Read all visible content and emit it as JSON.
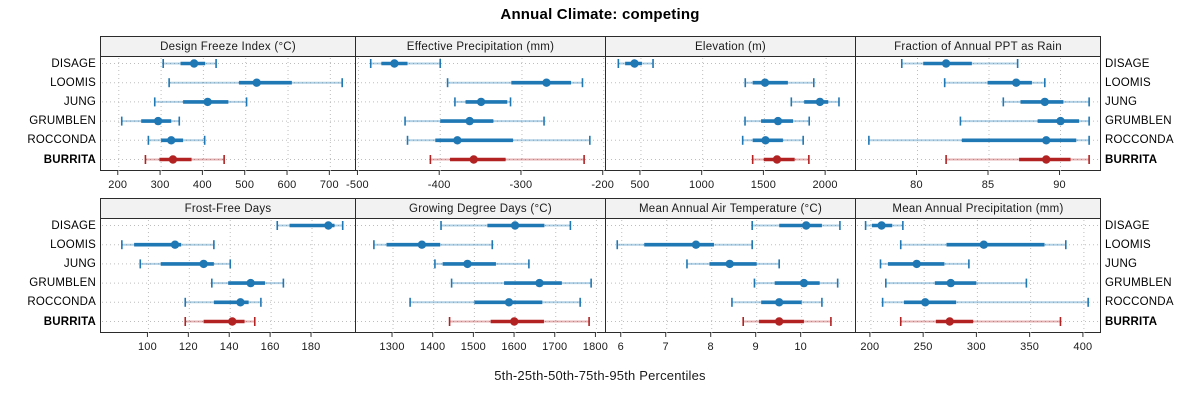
{
  "title": "Annual Climate: competing",
  "footer": "5th-25th-50th-75th-95th Percentiles",
  "sites": [
    "DISAGE",
    "LOOMIS",
    "JUNG",
    "GRUMBLEN",
    "ROCCONDA",
    "BURRITA"
  ],
  "highlight_site": "BURRITA",
  "percentile_labels": [
    "5th",
    "25th",
    "50th",
    "75th",
    "95th"
  ],
  "colors": {
    "series": "#1f77b4",
    "series_light": "rgba(31,119,180,0.35)",
    "highlight": "#b22222",
    "highlight_light": "rgba(178,34,34,0.35)",
    "grid": "#bdbdbd",
    "panel_border": "#2b2b2b",
    "strip_bg": "#f2f2f2",
    "text": "#1a1a1a"
  },
  "chart_data": [
    {
      "type": "range-dot",
      "title": "Design Freeze Index (°C)",
      "xlim": [
        158,
        763
      ],
      "ticks": [
        200,
        300,
        400,
        500,
        600,
        700
      ],
      "series": [
        {
          "name": "DISAGE",
          "percentiles": [
            305,
            346,
            378,
            404,
            430
          ]
        },
        {
          "name": "LOOMIS",
          "percentiles": [
            319,
            484,
            526,
            609,
            728
          ]
        },
        {
          "name": "JUNG",
          "percentiles": [
            285,
            352,
            410,
            459,
            502
          ]
        },
        {
          "name": "GRUMBLEN",
          "percentiles": [
            207,
            253,
            293,
            324,
            343
          ]
        },
        {
          "name": "ROCCONDA",
          "percentiles": [
            270,
            300,
            324,
            352,
            403
          ]
        },
        {
          "name": "BURRITA",
          "percentiles": [
            263,
            296,
            328,
            372,
            449
          ]
        }
      ]
    },
    {
      "type": "range-dot",
      "title": "Effective Precipitation (mm)",
      "xlim": [
        -503,
        -196
      ],
      "ticks": [
        -500,
        -400,
        -300,
        -200
      ],
      "series": [
        {
          "name": "DISAGE",
          "percentiles": [
            -485,
            -472,
            -456,
            -440,
            -400
          ]
        },
        {
          "name": "LOOMIS",
          "percentiles": [
            -391,
            -313,
            -270,
            -240,
            -226
          ]
        },
        {
          "name": "JUNG",
          "percentiles": [
            -382,
            -369,
            -350,
            -318,
            -314
          ]
        },
        {
          "name": "GRUMBLEN",
          "percentiles": [
            -443,
            -400,
            -364,
            -335,
            -273
          ]
        },
        {
          "name": "ROCCONDA",
          "percentiles": [
            -440,
            -406,
            -379,
            -311,
            -217
          ]
        },
        {
          "name": "BURRITA",
          "percentiles": [
            -412,
            -388,
            -359,
            -320,
            -224
          ]
        }
      ]
    },
    {
      "type": "range-dot",
      "title": "Elevation (m)",
      "xlim": [
        217,
        2250
      ],
      "ticks": [
        500,
        1000,
        1500,
        2000
      ],
      "series": [
        {
          "name": "DISAGE",
          "percentiles": [
            317,
            372,
            448,
            508,
            598
          ]
        },
        {
          "name": "LOOMIS",
          "percentiles": [
            1345,
            1405,
            1505,
            1690,
            1900
          ]
        },
        {
          "name": "JUNG",
          "percentiles": [
            1718,
            1822,
            1950,
            2017,
            2104
          ]
        },
        {
          "name": "GRUMBLEN",
          "percentiles": [
            1343,
            1473,
            1610,
            1732,
            1863
          ]
        },
        {
          "name": "ROCCONDA",
          "percentiles": [
            1324,
            1405,
            1509,
            1650,
            1814
          ]
        },
        {
          "name": "BURRITA",
          "percentiles": [
            1405,
            1495,
            1602,
            1745,
            1860
          ]
        }
      ]
    },
    {
      "type": "range-dot",
      "title": "Fraction of Annual PPT as Rain",
      "xlim": [
        75.7,
        92.9
      ],
      "ticks": [
        80,
        85,
        90
      ],
      "series": [
        {
          "name": "DISAGE",
          "percentiles": [
            78.9,
            80.4,
            82.0,
            83.8,
            87.0
          ]
        },
        {
          "name": "LOOMIS",
          "percentiles": [
            81.9,
            84.9,
            86.9,
            88.0,
            88.9
          ]
        },
        {
          "name": "JUNG",
          "percentiles": [
            86.0,
            87.2,
            88.9,
            90.2,
            92.0
          ]
        },
        {
          "name": "GRUMBLEN",
          "percentiles": [
            83.0,
            88.4,
            90.0,
            91.3,
            92.0
          ]
        },
        {
          "name": "ROCCONDA",
          "percentiles": [
            76.6,
            83.1,
            89.0,
            91.1,
            92.0
          ]
        },
        {
          "name": "BURRITA",
          "percentiles": [
            82.0,
            87.1,
            89.0,
            90.7,
            92.0
          ]
        }
      ]
    },
    {
      "type": "range-dot",
      "title": "Frost-Free Days",
      "xlim": [
        76.8,
        202
      ],
      "ticks": [
        100,
        120,
        140,
        160,
        180
      ],
      "series": [
        {
          "name": "DISAGE",
          "percentiles": [
            163,
            169,
            188,
            191,
            195
          ]
        },
        {
          "name": "LOOMIS",
          "percentiles": [
            87,
            93,
            113,
            116,
            132
          ]
        },
        {
          "name": "JUNG",
          "percentiles": [
            96,
            106,
            127,
            132,
            140
          ]
        },
        {
          "name": "GRUMBLEN",
          "percentiles": [
            131,
            139,
            150,
            157,
            166
          ]
        },
        {
          "name": "ROCCONDA",
          "percentiles": [
            118,
            132,
            145,
            149,
            155
          ]
        },
        {
          "name": "BURRITA",
          "percentiles": [
            118,
            127,
            141,
            147,
            152
          ]
        }
      ]
    },
    {
      "type": "range-dot",
      "title": "Growing Degree Days (°C)",
      "xlim": [
        1209,
        1826
      ],
      "ticks": [
        1300,
        1400,
        1500,
        1600,
        1700,
        1800
      ],
      "series": [
        {
          "name": "DISAGE",
          "percentiles": [
            1418,
            1532,
            1600,
            1672,
            1736
          ]
        },
        {
          "name": "LOOMIS",
          "percentiles": [
            1253,
            1284,
            1371,
            1416,
            1544
          ]
        },
        {
          "name": "JUNG",
          "percentiles": [
            1403,
            1422,
            1483,
            1553,
            1634
          ]
        },
        {
          "name": "GRUMBLEN",
          "percentiles": [
            1444,
            1573,
            1660,
            1715,
            1787
          ]
        },
        {
          "name": "ROCCONDA",
          "percentiles": [
            1342,
            1500,
            1585,
            1667,
            1760
          ]
        },
        {
          "name": "BURRITA",
          "percentiles": [
            1439,
            1540,
            1598,
            1671,
            1782
          ]
        }
      ]
    },
    {
      "type": "range-dot",
      "title": "Mean Annual Air Temperature (°C)",
      "xlim": [
        5.65,
        11.23
      ],
      "ticks": [
        6,
        7,
        8,
        9,
        10
      ],
      "series": [
        {
          "name": "DISAGE",
          "percentiles": [
            8.9,
            9.5,
            10.1,
            10.45,
            10.85
          ]
        },
        {
          "name": "LOOMIS",
          "percentiles": [
            5.9,
            6.5,
            7.65,
            8.05,
            8.9
          ]
        },
        {
          "name": "JUNG",
          "percentiles": [
            7.45,
            7.95,
            8.4,
            9.0,
            9.5
          ]
        },
        {
          "name": "GRUMBLEN",
          "percentiles": [
            8.95,
            9.4,
            10.05,
            10.4,
            10.8
          ]
        },
        {
          "name": "ROCCONDA",
          "percentiles": [
            8.45,
            9.1,
            9.5,
            10.0,
            10.45
          ]
        },
        {
          "name": "BURRITA",
          "percentiles": [
            8.7,
            9.05,
            9.5,
            10.05,
            10.65
          ]
        }
      ]
    },
    {
      "type": "range-dot",
      "title": "Mean Annual Precipitation (mm)",
      "xlim": [
        186,
        417
      ],
      "ticks": [
        200,
        250,
        300,
        350,
        400
      ],
      "series": [
        {
          "name": "DISAGE",
          "percentiles": [
            195,
            201,
            210,
            220,
            230
          ]
        },
        {
          "name": "LOOMIS",
          "percentiles": [
            228,
            271,
            306,
            363,
            383
          ]
        },
        {
          "name": "JUNG",
          "percentiles": [
            209,
            216,
            243,
            269,
            292
          ]
        },
        {
          "name": "GRUMBLEN",
          "percentiles": [
            214,
            260,
            275,
            299,
            346
          ]
        },
        {
          "name": "ROCCONDA",
          "percentiles": [
            211,
            231,
            251,
            280,
            404
          ]
        },
        {
          "name": "BURRITA",
          "percentiles": [
            228,
            261,
            274,
            296,
            378
          ]
        }
      ]
    }
  ]
}
